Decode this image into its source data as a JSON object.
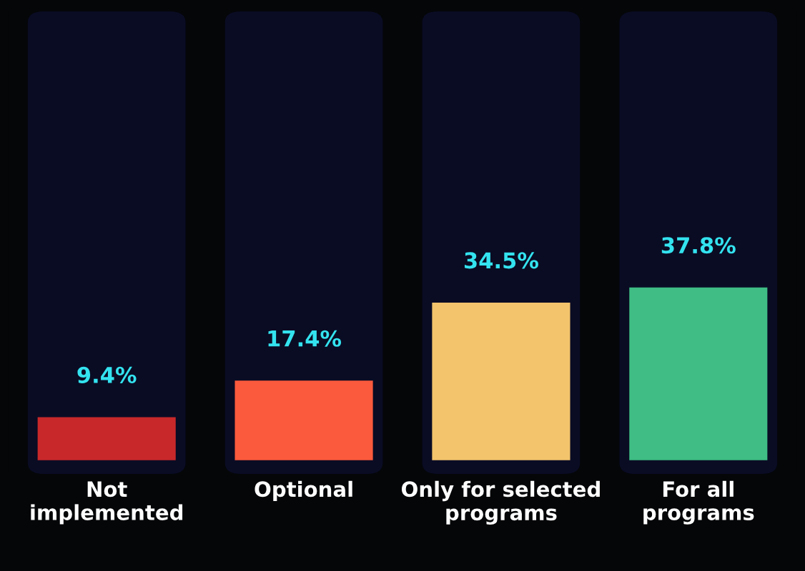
{
  "chart_data": {
    "type": "bar",
    "categories": [
      "Not implemented",
      "Optional",
      "Only for selected programs",
      "For all programs"
    ],
    "values": [
      9.4,
      17.4,
      34.5,
      37.8
    ],
    "value_labels": [
      "9.4%",
      "17.4%",
      "34.5%",
      "37.8%"
    ],
    "colors": [
      "#c8282a",
      "#fb5a3c",
      "#f3c46c",
      "#3fbd84"
    ],
    "tick_labels": "x",
    "grid": false,
    "legend": false
  }
}
